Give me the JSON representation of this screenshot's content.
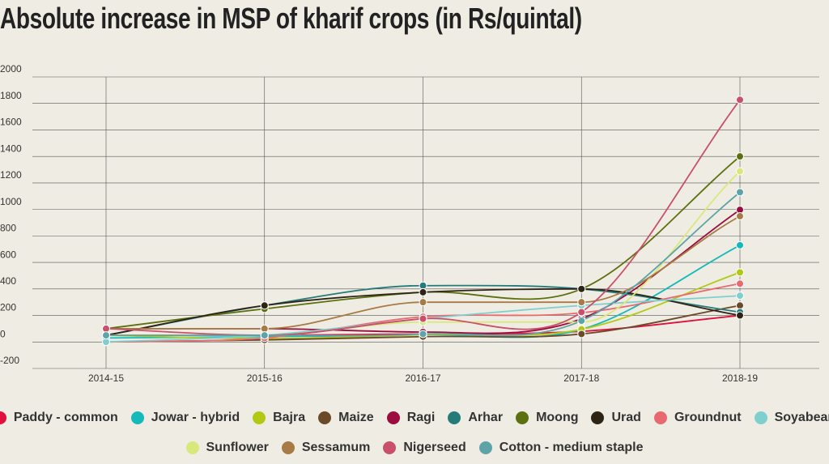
{
  "chart_data": {
    "type": "line",
    "title": "Absolute increase in MSP of kharif crops (in Rs/quintal)",
    "categories": [
      "2014-15",
      "2015-16",
      "2016-17",
      "2017-18",
      "2018-19"
    ],
    "ylim": [
      -200,
      2000
    ],
    "yticks": [
      -200,
      0,
      200,
      400,
      600,
      800,
      1000,
      1200,
      1400,
      1600,
      1800,
      2000
    ],
    "grid": true,
    "legend": "bottom",
    "series": [
      {
        "name": "Paddy - common",
        "color": "#e0103e",
        "values": [
          50,
          50,
          60,
          80,
          200
        ]
      },
      {
        "name": "Jowar - hybrid",
        "color": "#15b9b9",
        "values": [
          30,
          40,
          55,
          95,
          730
        ]
      },
      {
        "name": "Bajra",
        "color": "#b3c814",
        "values": [
          50,
          25,
          55,
          95,
          525
        ]
      },
      {
        "name": "Maize",
        "color": "#6b4a2a",
        "values": [
          0,
          15,
          40,
          60,
          275
        ]
      },
      {
        "name": "Ragi",
        "color": "#9c0c3f",
        "values": [
          100,
          100,
          75,
          175,
          997
        ]
      },
      {
        "name": "Arhar",
        "color": "#257a7a",
        "values": [
          50,
          275,
          425,
          400,
          225
        ]
      },
      {
        "name": "Moong",
        "color": "#5c7010",
        "values": [
          100,
          250,
          375,
          400,
          1400
        ]
      },
      {
        "name": "Urad",
        "color": "#2e2416",
        "values": [
          50,
          275,
          375,
          400,
          200
        ]
      },
      {
        "name": "Groundnut",
        "color": "#e86a70",
        "values": [
          0,
          30,
          190,
          220,
          440
        ]
      },
      {
        "name": "Soyabean",
        "color": "#7fcfcf",
        "values": [
          0,
          50,
          175,
          275,
          349
        ]
      },
      {
        "name": "Sunflower",
        "color": "#d9e87a",
        "values": [
          50,
          50,
          150,
          150,
          1288
        ]
      },
      {
        "name": "Sessamum",
        "color": "#a87a45",
        "values": [
          100,
          100,
          300,
          300,
          949
        ]
      },
      {
        "name": "Nigerseed",
        "color": "#c94f6a",
        "values": [
          100,
          50,
          175,
          225,
          1827
        ]
      },
      {
        "name": "Cotton - medium staple",
        "color": "#5ea3a8",
        "values": [
          50,
          50,
          60,
          160,
          1130
        ]
      }
    ]
  }
}
